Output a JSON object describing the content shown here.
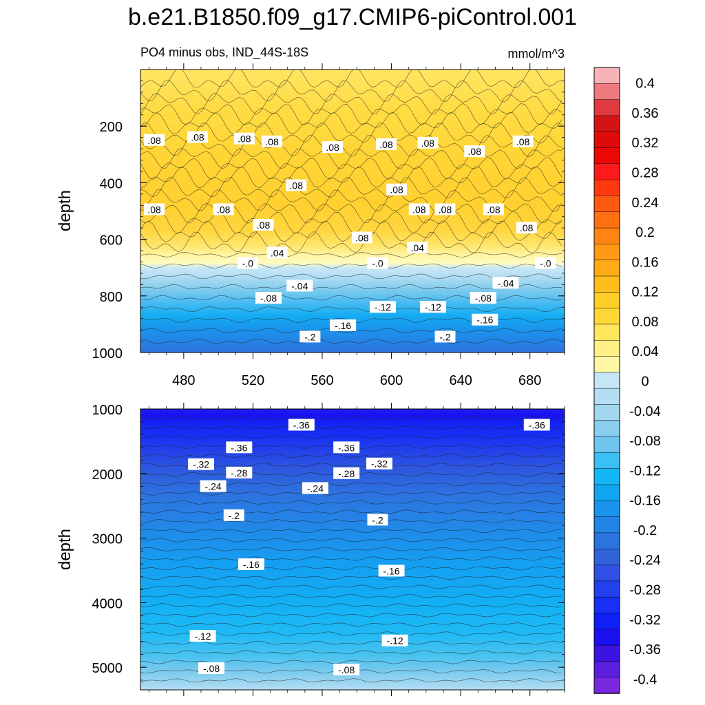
{
  "figure": {
    "title": "b.e21.B1850.f09_g17.CMIP6-piControl.001",
    "subtitle_left": "PO4 minus obs, IND_44S-18S",
    "subtitle_right": "mmol/m^3"
  },
  "chart_data": [
    {
      "type": "heatmap",
      "title": "PO4 minus obs, IND_44S-18S",
      "units": "mmol/m^3",
      "xlabel": "",
      "ylabel": "depth",
      "xlim": [
        455,
        700
      ],
      "ylim": [
        1000,
        0
      ],
      "xticks": [
        "480",
        "520",
        "560",
        "600",
        "640",
        "680"
      ],
      "yticks": [
        "200",
        "400",
        "600",
        "800",
        "1000"
      ],
      "contour_labels": [
        {
          "text": ".08",
          "x": 463,
          "y": 250
        },
        {
          "text": ".08",
          "x": 488,
          "y": 240
        },
        {
          "text": ".08",
          "x": 515,
          "y": 245
        },
        {
          "text": ".08",
          "x": 531,
          "y": 255
        },
        {
          "text": ".08",
          "x": 566,
          "y": 275
        },
        {
          "text": ".08",
          "x": 597,
          "y": 265
        },
        {
          "text": ".08",
          "x": 621,
          "y": 260
        },
        {
          "text": ".08",
          "x": 648,
          "y": 290
        },
        {
          "text": ".08",
          "x": 676,
          "y": 255
        },
        {
          "text": ".08",
          "x": 545,
          "y": 410
        },
        {
          "text": ".08",
          "x": 603,
          "y": 425
        },
        {
          "text": ".08",
          "x": 463,
          "y": 495
        },
        {
          "text": ".08",
          "x": 503,
          "y": 495
        },
        {
          "text": ".08",
          "x": 616,
          "y": 495
        },
        {
          "text": ".08",
          "x": 631,
          "y": 495
        },
        {
          "text": ".08",
          "x": 659,
          "y": 495
        },
        {
          "text": ".08",
          "x": 526,
          "y": 550
        },
        {
          "text": ".08",
          "x": 583,
          "y": 595
        },
        {
          "text": ".08",
          "x": 678,
          "y": 560
        },
        {
          "text": ".04",
          "x": 534,
          "y": 648
        },
        {
          "text": ".04",
          "x": 615,
          "y": 630
        },
        {
          "text": "-.0",
          "x": 517,
          "y": 685
        },
        {
          "text": "-.0",
          "x": 592,
          "y": 685
        },
        {
          "text": "-.0",
          "x": 689,
          "y": 685
        },
        {
          "text": "-.04",
          "x": 547,
          "y": 765
        },
        {
          "text": "-.04",
          "x": 666,
          "y": 755
        },
        {
          "text": "-.08",
          "x": 529,
          "y": 808
        },
        {
          "text": "-.08",
          "x": 653,
          "y": 808
        },
        {
          "text": "-.12",
          "x": 595,
          "y": 840
        },
        {
          "text": "-.12",
          "x": 624,
          "y": 840
        },
        {
          "text": "-.16",
          "x": 572,
          "y": 905
        },
        {
          "text": "-.16",
          "x": 654,
          "y": 885
        },
        {
          "text": "-.2",
          "x": 553,
          "y": 945
        },
        {
          "text": "-.2",
          "x": 631,
          "y": 945
        }
      ]
    },
    {
      "type": "heatmap",
      "title": "",
      "xlabel": "",
      "ylabel": "depth",
      "xlim": [
        455,
        700
      ],
      "ylim": [
        5350,
        1000
      ],
      "xticks": [],
      "yticks": [
        "1000",
        "2000",
        "3000",
        "4000",
        "5000"
      ],
      "contour_labels": [
        {
          "text": "-.36",
          "x": 548,
          "y": 1250
        },
        {
          "text": "-.36",
          "x": 684,
          "y": 1250
        },
        {
          "text": "-.36",
          "x": 512,
          "y": 1600
        },
        {
          "text": "-.36",
          "x": 574,
          "y": 1600
        },
        {
          "text": "-.32",
          "x": 490,
          "y": 1860
        },
        {
          "text": "-.32",
          "x": 593,
          "y": 1850
        },
        {
          "text": "-.28",
          "x": 512,
          "y": 1990
        },
        {
          "text": "-.28",
          "x": 574,
          "y": 2000
        },
        {
          "text": "-.24",
          "x": 497,
          "y": 2200
        },
        {
          "text": "-.24",
          "x": 556,
          "y": 2230
        },
        {
          "text": "-.2",
          "x": 509,
          "y": 2650
        },
        {
          "text": "-.2",
          "x": 592,
          "y": 2720
        },
        {
          "text": "-.16",
          "x": 519,
          "y": 3410
        },
        {
          "text": "-.16",
          "x": 600,
          "y": 3510
        },
        {
          "text": "-.12",
          "x": 491,
          "y": 4520
        },
        {
          "text": "-.12",
          "x": 602,
          "y": 4590
        },
        {
          "text": "-.08",
          "x": 496,
          "y": 5020
        },
        {
          "text": "-.08",
          "x": 574,
          "y": 5040
        }
      ]
    },
    {
      "type": "colorbar",
      "labels": [
        "0.4",
        "0.36",
        "0.32",
        "0.28",
        "0.24",
        "0.2",
        "0.16",
        "0.12",
        "0.08",
        "0.04",
        "0",
        "-0.04",
        "-0.08",
        "-0.12",
        "-0.16",
        "-0.2",
        "-0.24",
        "-0.28",
        "-0.32",
        "-0.36",
        "-0.4"
      ],
      "min": -0.42,
      "max": 0.42,
      "step": 0.02,
      "colors_top_to_bottom": [
        "#f7b4b8",
        "#ee7a80",
        "#e03a40",
        "#d31414",
        "#df0b0b",
        "#ec0707",
        "#fe1a1a",
        "#ff3a10",
        "#ff5a12",
        "#ff7010",
        "#ff8512",
        "#ff9a14",
        "#ffab17",
        "#ffbd1c",
        "#ffcd28",
        "#ffd837",
        "#ffe65c",
        "#ffef84",
        "#fff7a6",
        "#c6e6f6",
        "#b5def2",
        "#a2d6ef",
        "#8acdee",
        "#6ec5ee",
        "#3cbff2",
        "#14b7f6",
        "#12a6f2",
        "#1994ec",
        "#2284e6",
        "#2b74e0",
        "#3062d8",
        "#2f4fe5",
        "#2340ed",
        "#1830f5",
        "#0e1ff8",
        "#1a10f0",
        "#3b14e2",
        "#5a1fdc",
        "#7a28e0"
      ]
    }
  ]
}
